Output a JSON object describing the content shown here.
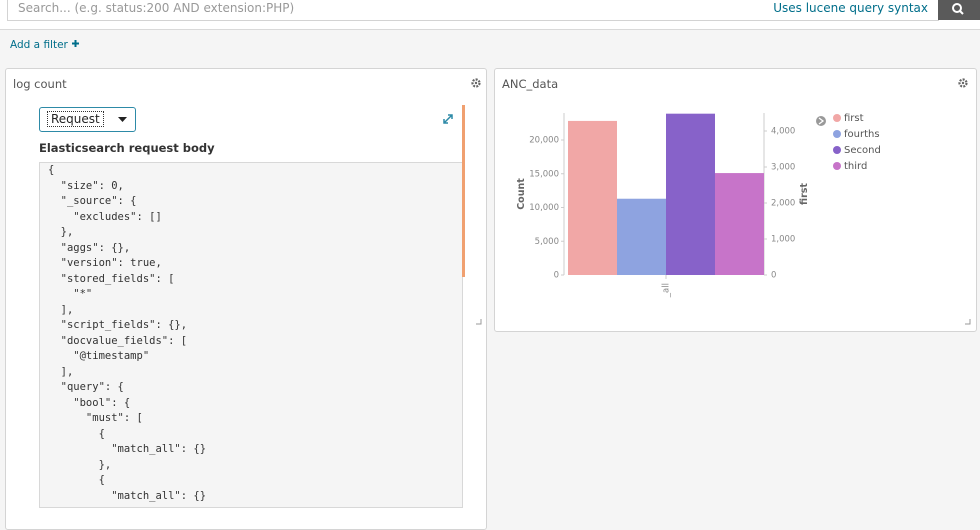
{
  "search": {
    "placeholder": "Search... (e.g. status:200 AND extension:PHP)",
    "syntax_link": "Uses lucene query syntax"
  },
  "add_filter": "Add a filter",
  "left_panel": {
    "title": "log count",
    "dropdown": "Request",
    "heading": "Elasticsearch request body",
    "code": [
      "{",
      "  \"size\": 0,",
      "  \"_source\": {",
      "    \"excludes\": []",
      "  },",
      "  \"aggs\": {},",
      "  \"version\": true,",
      "  \"stored_fields\": [",
      "    \"*\"",
      "  ],",
      "  \"script_fields\": {},",
      "  \"docvalue_fields\": [",
      "    \"@timestamp\"",
      "  ],",
      "  \"query\": {",
      "    \"bool\": {",
      "      \"must\": [",
      "        {",
      "          \"match_all\": {}",
      "        },",
      "        {",
      "          \"match_all\": {}"
    ]
  },
  "right_panel": {
    "title": "ANC_data"
  },
  "chart_data": {
    "type": "bar",
    "categories": [
      "_all"
    ],
    "y_label": "Count",
    "y2_label": "first",
    "series": [
      {
        "name": "first",
        "color": "#f1a7a6",
        "values": [
          4280
        ],
        "axis": "y2"
      },
      {
        "name": "fourths",
        "color": "#8ea3e0",
        "values": [
          11300
        ]
      },
      {
        "name": "Second",
        "color": "#8762c9",
        "values": [
          23900
        ]
      },
      {
        "name": "third",
        "color": "#c774c9",
        "values": [
          15100
        ]
      }
    ],
    "ylim": [
      0,
      24000
    ],
    "yticks": [
      0,
      {
        "value": 5000,
        "label": "5,000"
      },
      {
        "value": 10000,
        "label": "10,000"
      },
      {
        "value": 15000,
        "label": "15,000"
      },
      {
        "value": 20000,
        "label": "20,000"
      }
    ],
    "y2lim": [
      0,
      4500
    ],
    "y2ticks": [
      0,
      {
        "value": 1000,
        "label": "1,000"
      },
      {
        "value": 2000,
        "label": "2,000"
      },
      {
        "value": 3000,
        "label": "3,000"
      },
      {
        "value": 4000,
        "label": "4,000"
      }
    ],
    "legend": "right"
  }
}
